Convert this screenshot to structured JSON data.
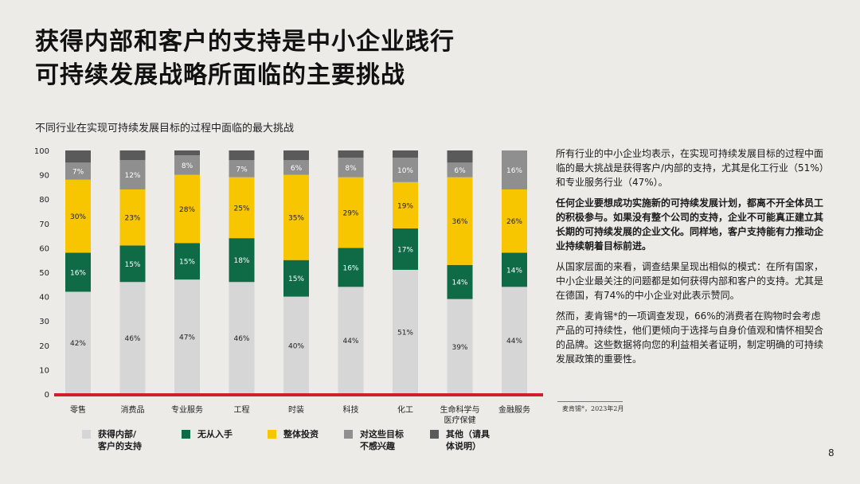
{
  "slide": {
    "title_line1": "获得内部和客户的支持是中小企业践行",
    "title_line2": "可持续发展战略所面临的主要挑战",
    "page_number": "8",
    "source": "麦肯锡*，2023年2月"
  },
  "sidebar": {
    "p1": "所有行业的中小企业均表示，在实现可持续发展目标的过程中面临的最大挑战是获得客户/内部的支持，尤其是化工行业（51%）和专业服务行业（47%）。",
    "p2": "任何企业要想成功实施新的可持续发展计划，都离不开全体员工的积极参与。如果没有整个公司的支持，企业不可能真正建立其长期的可持续发展的企业文化。同样地，客户支持能有力推动企业持续朝着目标前进。",
    "p3": "从国家层面的来看，调查结果呈现出相似的模式：在所有国家，中小企业最关注的问题都是如何获得内部和客户的支持。尤其是在德国，有74%的中小企业对此表示赞同。",
    "p4": "然而，麦肯锡*的一项调查发现，66%的消费者在购物时会考虑产品的可持续性，他们更倾向于选择与自身价值观和情怀相契合的品牌。这些数据将向您的利益相关者证明，制定明确的可持续发展政策的重要性。"
  },
  "chart_data": {
    "type": "bar",
    "stacked": true,
    "title": "不同行业在实现可持续发展目标的过程中面临的最大挑战",
    "categories": [
      "零售",
      "消费品",
      "专业服务",
      "工程",
      "时装",
      "科技",
      "化工",
      "生命科学与\n医疗保健",
      "金融服务"
    ],
    "ylim": [
      0,
      100
    ],
    "yticks": [
      0,
      10,
      20,
      30,
      40,
      50,
      60,
      70,
      80,
      90,
      100
    ],
    "series": [
      {
        "name": "获得内部/\n客户的支持",
        "color": "#d6d6d6",
        "text_color": "#222222",
        "values": [
          42,
          46,
          47,
          46,
          40,
          44,
          51,
          39,
          44
        ],
        "labels": [
          "42%",
          "46%",
          "47%",
          "46%",
          "40%",
          "44%",
          "51%",
          "39%",
          "44%"
        ]
      },
      {
        "name": "无从入手",
        "color": "#0e6b45",
        "text_color": "#ffffff",
        "values": [
          16,
          15,
          15,
          18,
          15,
          16,
          17,
          14,
          14
        ],
        "labels": [
          "16%",
          "15%",
          "15%",
          "18%",
          "15%",
          "16%",
          "17%",
          "14%",
          "14%"
        ]
      },
      {
        "name": "整体投资",
        "color": "#f7c600",
        "text_color": "#222222",
        "values": [
          30,
          23,
          28,
          25,
          35,
          29,
          19,
          36,
          26
        ],
        "labels": [
          "30%",
          "23%",
          "28%",
          "25%",
          "35%",
          "29%",
          "19%",
          "36%",
          "26%"
        ]
      },
      {
        "name": "对这些目标\n不感兴趣",
        "color": "#8f8f8f",
        "text_color": "#ffffff",
        "values": [
          7,
          12,
          8,
          7,
          6,
          8,
          10,
          6,
          16
        ],
        "labels": [
          "7%",
          "12%",
          "8%",
          "7%",
          "6%",
          "8%",
          "10%",
          "6%",
          "16%"
        ]
      },
      {
        "name": "其他（请具\n体说明）",
        "color": "#5a5a5a",
        "text_color": "#ffffff",
        "values": [
          5,
          4,
          2,
          4,
          4,
          3,
          3,
          5,
          0
        ],
        "labels": []
      }
    ],
    "baseline_color": "#d01e2a"
  }
}
